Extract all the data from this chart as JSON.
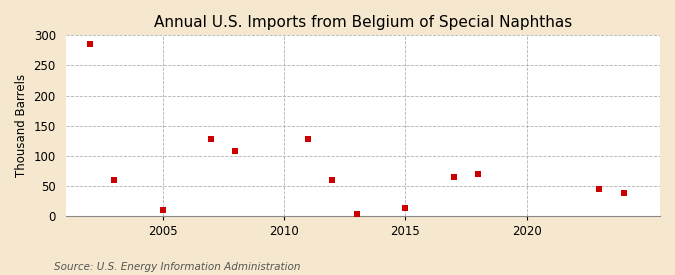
{
  "title": "Annual U.S. Imports from Belgium of Special Naphthas",
  "ylabel": "Thousand Barrels",
  "source_text": "Source: U.S. Energy Information Administration",
  "outer_background_color": "#f5e8ce",
  "plot_background_color": "#ffffff",
  "data_points": [
    [
      2002,
      285
    ],
    [
      2003,
      60
    ],
    [
      2005,
      10
    ],
    [
      2007,
      128
    ],
    [
      2008,
      108
    ],
    [
      2011,
      128
    ],
    [
      2012,
      60
    ],
    [
      2013,
      3
    ],
    [
      2015,
      14
    ],
    [
      2017,
      65
    ],
    [
      2018,
      70
    ],
    [
      2023,
      44
    ],
    [
      2024,
      38
    ]
  ],
  "marker_color": "#cc0000",
  "marker": "s",
  "marker_size": 4,
  "xlim": [
    2001,
    2025.5
  ],
  "ylim": [
    0,
    300
  ],
  "xticks": [
    2005,
    2010,
    2015,
    2020
  ],
  "yticks": [
    0,
    50,
    100,
    150,
    200,
    250,
    300
  ],
  "grid_color": "#aaaaaa",
  "grid_linestyle": "--",
  "title_fontsize": 11,
  "label_fontsize": 8.5,
  "tick_fontsize": 8.5,
  "source_fontsize": 7.5
}
